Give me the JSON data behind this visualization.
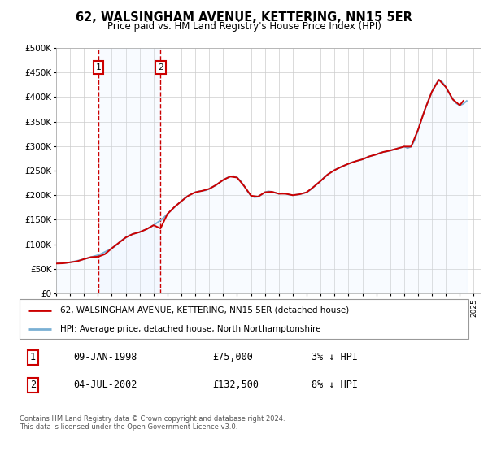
{
  "title": "62, WALSINGHAM AVENUE, KETTERING, NN15 5ER",
  "subtitle": "Price paid vs. HM Land Registry's House Price Index (HPI)",
  "ylim": [
    0,
    500000
  ],
  "xlim_start": 1995.0,
  "xlim_end": 2025.5,
  "yticks": [
    0,
    50000,
    100000,
    150000,
    200000,
    250000,
    300000,
    350000,
    400000,
    450000,
    500000
  ],
  "ytick_labels": [
    "£0",
    "£50K",
    "£100K",
    "£150K",
    "£200K",
    "£250K",
    "£300K",
    "£350K",
    "£400K",
    "£450K",
    "£500K"
  ],
  "sale1_date": 1998.03,
  "sale1_price": 75000,
  "sale2_date": 2002.5,
  "sale2_price": 132500,
  "sale1_date_str": "09-JAN-1998",
  "sale1_price_str": "£75,000",
  "sale1_hpi_str": "3% ↓ HPI",
  "sale2_date_str": "04-JUL-2002",
  "sale2_price_str": "£132,500",
  "sale2_hpi_str": "8% ↓ HPI",
  "line_color_price": "#cc0000",
  "line_color_hpi": "#7ab0d4",
  "shade_color": "#ddeeff",
  "grid_color": "#cccccc",
  "background_color": "#ffffff",
  "legend_label_price": "62, WALSINGHAM AVENUE, KETTERING, NN15 5ER (detached house)",
  "legend_label_hpi": "HPI: Average price, detached house, North Northamptonshire",
  "footnote": "Contains HM Land Registry data © Crown copyright and database right 2024.\nThis data is licensed under the Open Government Licence v3.0.",
  "hpi_data_x": [
    1995.0,
    1995.25,
    1995.5,
    1995.75,
    1996.0,
    1996.25,
    1996.5,
    1996.75,
    1997.0,
    1997.25,
    1997.5,
    1997.75,
    1998.0,
    1998.25,
    1998.5,
    1998.75,
    1999.0,
    1999.25,
    1999.5,
    1999.75,
    2000.0,
    2000.25,
    2000.5,
    2000.75,
    2001.0,
    2001.25,
    2001.5,
    2001.75,
    2002.0,
    2002.25,
    2002.5,
    2002.75,
    2003.0,
    2003.25,
    2003.5,
    2003.75,
    2004.0,
    2004.25,
    2004.5,
    2004.75,
    2005.0,
    2005.25,
    2005.5,
    2005.75,
    2006.0,
    2006.25,
    2006.5,
    2006.75,
    2007.0,
    2007.25,
    2007.5,
    2007.75,
    2008.0,
    2008.25,
    2008.5,
    2008.75,
    2009.0,
    2009.25,
    2009.5,
    2009.75,
    2010.0,
    2010.25,
    2010.5,
    2010.75,
    2011.0,
    2011.25,
    2011.5,
    2011.75,
    2012.0,
    2012.25,
    2012.5,
    2012.75,
    2013.0,
    2013.25,
    2013.5,
    2013.75,
    2014.0,
    2014.25,
    2014.5,
    2014.75,
    2015.0,
    2015.25,
    2015.5,
    2015.75,
    2016.0,
    2016.25,
    2016.5,
    2016.75,
    2017.0,
    2017.25,
    2017.5,
    2017.75,
    2018.0,
    2018.25,
    2018.5,
    2018.75,
    2019.0,
    2019.25,
    2019.5,
    2019.75,
    2020.0,
    2020.25,
    2020.5,
    2020.75,
    2021.0,
    2021.25,
    2021.5,
    2021.75,
    2022.0,
    2022.25,
    2022.5,
    2022.75,
    2023.0,
    2023.25,
    2023.5,
    2023.75,
    2024.0,
    2024.25,
    2024.5
  ],
  "hpi_data_y": [
    62000,
    61500,
    62000,
    62500,
    63500,
    65000,
    66500,
    68000,
    70000,
    72000,
    74000,
    76000,
    78000,
    81000,
    84500,
    88000,
    92000,
    97000,
    103000,
    109000,
    114000,
    118000,
    121000,
    123000,
    125000,
    128000,
    131000,
    135000,
    139000,
    144000,
    149000,
    155000,
    162000,
    169000,
    176000,
    182000,
    188000,
    194000,
    199000,
    203000,
    206000,
    208000,
    209000,
    210000,
    213000,
    217000,
    221000,
    226000,
    231000,
    235000,
    238000,
    239000,
    236000,
    229000,
    219000,
    208000,
    199000,
    196000,
    197000,
    201000,
    206000,
    208000,
    207000,
    205000,
    203000,
    204000,
    203000,
    201000,
    200000,
    201000,
    202000,
    204000,
    206000,
    211000,
    217000,
    223000,
    229000,
    236000,
    242000,
    247000,
    251000,
    255000,
    258000,
    261000,
    264000,
    267000,
    269000,
    271000,
    273000,
    276000,
    279000,
    281000,
    283000,
    286000,
    288000,
    289000,
    291000,
    293000,
    295000,
    297000,
    299000,
    296000,
    299000,
    312000,
    333000,
    355000,
    375000,
    393000,
    411000,
    425000,
    435000,
    430000,
    420000,
    407000,
    395000,
    387000,
    383000,
    386000,
    392000
  ],
  "price_data_x": [
    1995.0,
    1995.5,
    1996.0,
    1996.5,
    1997.0,
    1997.5,
    1998.03,
    1998.5,
    1999.0,
    1999.5,
    2000.0,
    2000.5,
    2001.0,
    2001.5,
    2002.0,
    2002.5,
    2003.0,
    2003.5,
    2004.0,
    2004.5,
    2005.0,
    2005.5,
    2006.0,
    2006.5,
    2007.0,
    2007.5,
    2008.0,
    2008.5,
    2009.0,
    2009.5,
    2010.0,
    2010.5,
    2011.0,
    2011.5,
    2012.0,
    2012.5,
    2013.0,
    2013.5,
    2014.0,
    2014.5,
    2015.0,
    2015.5,
    2016.0,
    2016.5,
    2017.0,
    2017.5,
    2018.0,
    2018.5,
    2019.0,
    2019.5,
    2020.0,
    2020.5,
    2021.0,
    2021.5,
    2022.0,
    2022.5,
    2023.0,
    2023.5,
    2024.0,
    2024.25
  ],
  "price_data_y": [
    61000,
    61500,
    63500,
    65500,
    70000,
    74000,
    75000,
    80000,
    92000,
    103000,
    114000,
    121000,
    125000,
    131000,
    139000,
    132500,
    162000,
    176000,
    188000,
    199000,
    206000,
    209000,
    213000,
    221000,
    231000,
    238000,
    236000,
    219000,
    199000,
    197000,
    206000,
    207000,
    203000,
    203000,
    200000,
    202000,
    206000,
    217000,
    229000,
    242000,
    251000,
    258000,
    264000,
    269000,
    273000,
    279000,
    283000,
    288000,
    291000,
    295000,
    299000,
    299000,
    333000,
    375000,
    411000,
    435000,
    420000,
    395000,
    383000,
    392000
  ]
}
